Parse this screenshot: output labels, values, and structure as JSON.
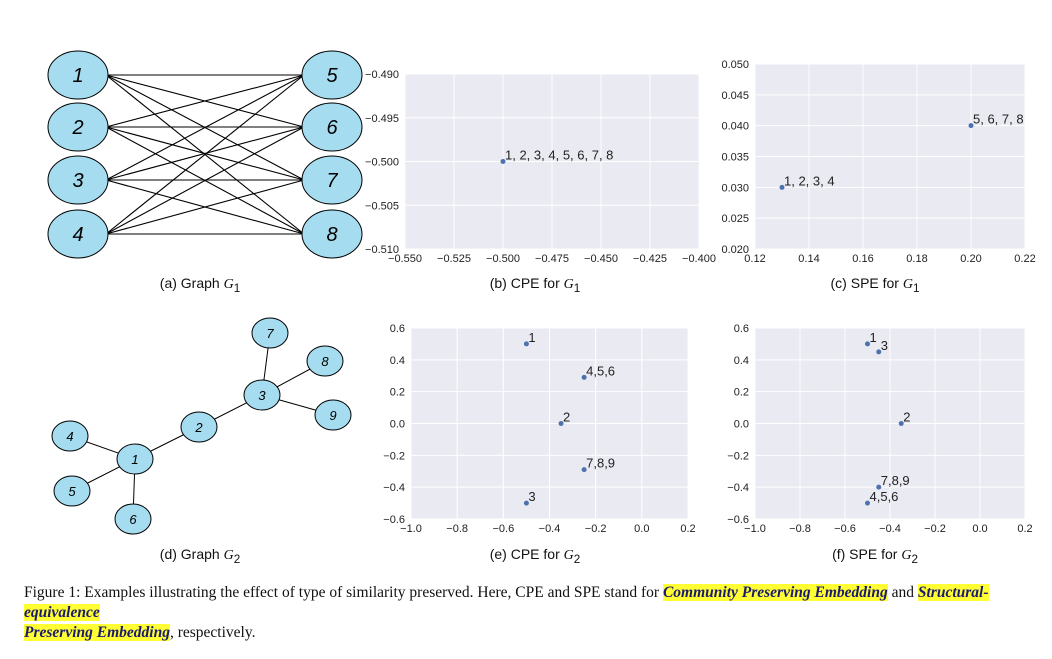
{
  "colors": {
    "node_fill": "#a6dcef",
    "edge": "#000000",
    "plot_bg": "#eaeaf2",
    "grid": "#ffffff",
    "point": "#4c72b0",
    "highlight": "#ffff33"
  },
  "graph_g1": {
    "left_nodes": [
      "1",
      "2",
      "3",
      "4"
    ],
    "right_nodes": [
      "5",
      "6",
      "7",
      "8"
    ]
  },
  "graph_g2": {
    "nodes": [
      "1",
      "2",
      "3",
      "4",
      "5",
      "6",
      "7",
      "8",
      "9"
    ],
    "edges": [
      [
        "1",
        "2"
      ],
      [
        "1",
        "4"
      ],
      [
        "1",
        "5"
      ],
      [
        "1",
        "6"
      ],
      [
        "2",
        "3"
      ],
      [
        "3",
        "7"
      ],
      [
        "3",
        "8"
      ],
      [
        "3",
        "9"
      ]
    ]
  },
  "captions": {
    "a": {
      "prefix": "(a) Graph ",
      "math": "G",
      "sub": "1"
    },
    "b": {
      "prefix": "(b) CPE for ",
      "math": "G",
      "sub": "1"
    },
    "c": {
      "prefix": "(c) SPE for ",
      "math": "G",
      "sub": "1"
    },
    "d": {
      "prefix": "(d) Graph ",
      "math": "G",
      "sub": "2"
    },
    "e": {
      "prefix": "(e) CPE for ",
      "math": "G",
      "sub": "2"
    },
    "f": {
      "prefix": "(f) SPE for ",
      "math": "G",
      "sub": "2"
    }
  },
  "figure_caption": {
    "lead": "Figure 1: Examples illustrating the effect of type of similarity preserved. Here, CPE and SPE stand for ",
    "term1": "Community Preserving Embedding",
    "mid": " and ",
    "term2a": "Structural-equivalence",
    "term2b": "Preserving Embedding",
    "tail": ", respectively."
  },
  "chart_data": [
    {
      "id": "b",
      "type": "scatter",
      "xlim": [
        -0.55,
        -0.4
      ],
      "ylim": [
        -0.51,
        -0.49
      ],
      "xticks": [
        "−0.550",
        "−0.525",
        "−0.500",
        "−0.475",
        "−0.450",
        "−0.425",
        "−0.400"
      ],
      "yticks": [
        "−0.510",
        "−0.505",
        "−0.500",
        "−0.495",
        "−0.490"
      ],
      "grid": true,
      "points": [
        {
          "x": -0.5,
          "y": -0.5,
          "label": "1, 2, 3, 4, 5, 6, 7, 8"
        }
      ]
    },
    {
      "id": "c",
      "type": "scatter",
      "xlim": [
        0.12,
        0.22
      ],
      "ylim": [
        0.02,
        0.05
      ],
      "xticks": [
        "0.12",
        "0.14",
        "0.16",
        "0.18",
        "0.20",
        "0.22"
      ],
      "yticks": [
        "0.020",
        "0.025",
        "0.030",
        "0.035",
        "0.040",
        "0.045",
        "0.050"
      ],
      "grid": true,
      "points": [
        {
          "x": 0.13,
          "y": 0.03,
          "label": "1, 2, 3, 4"
        },
        {
          "x": 0.2,
          "y": 0.04,
          "label": "5, 6, 7, 8"
        }
      ]
    },
    {
      "id": "e",
      "type": "scatter",
      "xlim": [
        -1.0,
        0.2
      ],
      "ylim": [
        -0.6,
        0.6
      ],
      "xticks": [
        "−1.0",
        "−0.8",
        "−0.6",
        "−0.4",
        "−0.2",
        "0.0",
        "0.2"
      ],
      "yticks": [
        "−0.6",
        "−0.4",
        "−0.2",
        "0.0",
        "0.2",
        "0.4",
        "0.6"
      ],
      "grid": true,
      "points": [
        {
          "x": -0.5,
          "y": 0.5,
          "label": "1"
        },
        {
          "x": -0.25,
          "y": 0.29,
          "label": "4,5,6"
        },
        {
          "x": -0.35,
          "y": 0.0,
          "label": "2"
        },
        {
          "x": -0.25,
          "y": -0.29,
          "label": "7,8,9"
        },
        {
          "x": -0.5,
          "y": -0.5,
          "label": "3"
        }
      ]
    },
    {
      "id": "f",
      "type": "scatter",
      "xlim": [
        -1.0,
        0.2
      ],
      "ylim": [
        -0.6,
        0.6
      ],
      "xticks": [
        "−1.0",
        "−0.8",
        "−0.6",
        "−0.4",
        "−0.2",
        "0.0",
        "0.2"
      ],
      "yticks": [
        "−0.6",
        "−0.4",
        "−0.2",
        "0.0",
        "0.2",
        "0.4",
        "0.6"
      ],
      "grid": true,
      "points": [
        {
          "x": -0.5,
          "y": 0.5,
          "label": "1"
        },
        {
          "x": -0.45,
          "y": 0.45,
          "label": "3"
        },
        {
          "x": -0.35,
          "y": 0.0,
          "label": "2"
        },
        {
          "x": -0.45,
          "y": -0.4,
          "label": "7,8,9"
        },
        {
          "x": -0.5,
          "y": -0.5,
          "label": "4,5,6"
        }
      ]
    }
  ]
}
